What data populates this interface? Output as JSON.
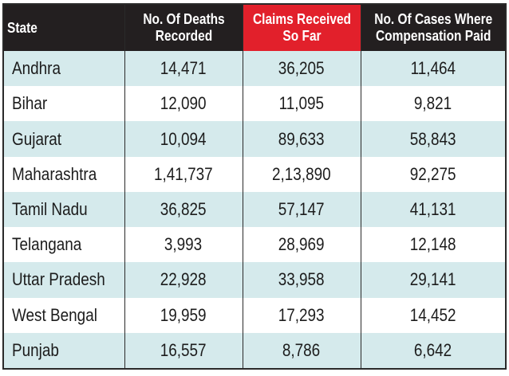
{
  "chart_data": {
    "type": "table",
    "columns": [
      "State",
      "No. Of Deaths Recorded",
      "Claims Received So Far",
      "No. Of Cases Where Compensation Paid"
    ],
    "highlighted_column": "Claims Received So Far",
    "colors": {
      "header": "#231f20",
      "header_highlight": "#e2202b",
      "row_alt": "#d5eaec",
      "row": "#ffffff"
    },
    "rows": [
      [
        "Andhra",
        "14,471",
        "36,205",
        "11,464"
      ],
      [
        "Bihar",
        "12,090",
        "11,095",
        "9,821"
      ],
      [
        "Gujarat",
        "10,094",
        "89,633",
        "58,843"
      ],
      [
        "Maharashtra",
        "1,41,737",
        "2,13,890",
        "92,275"
      ],
      [
        "Tamil Nadu",
        "36,825",
        "57,147",
        "41,131"
      ],
      [
        "Telangana",
        "3,993",
        "28,969",
        "12,148"
      ],
      [
        "Uttar Pradesh",
        "22,928",
        "33,958",
        "29,141"
      ],
      [
        "West Bengal",
        "19,959",
        "17,293",
        "14,452"
      ],
      [
        "Punjab",
        "16,557",
        "8,786",
        "6,642"
      ]
    ]
  }
}
